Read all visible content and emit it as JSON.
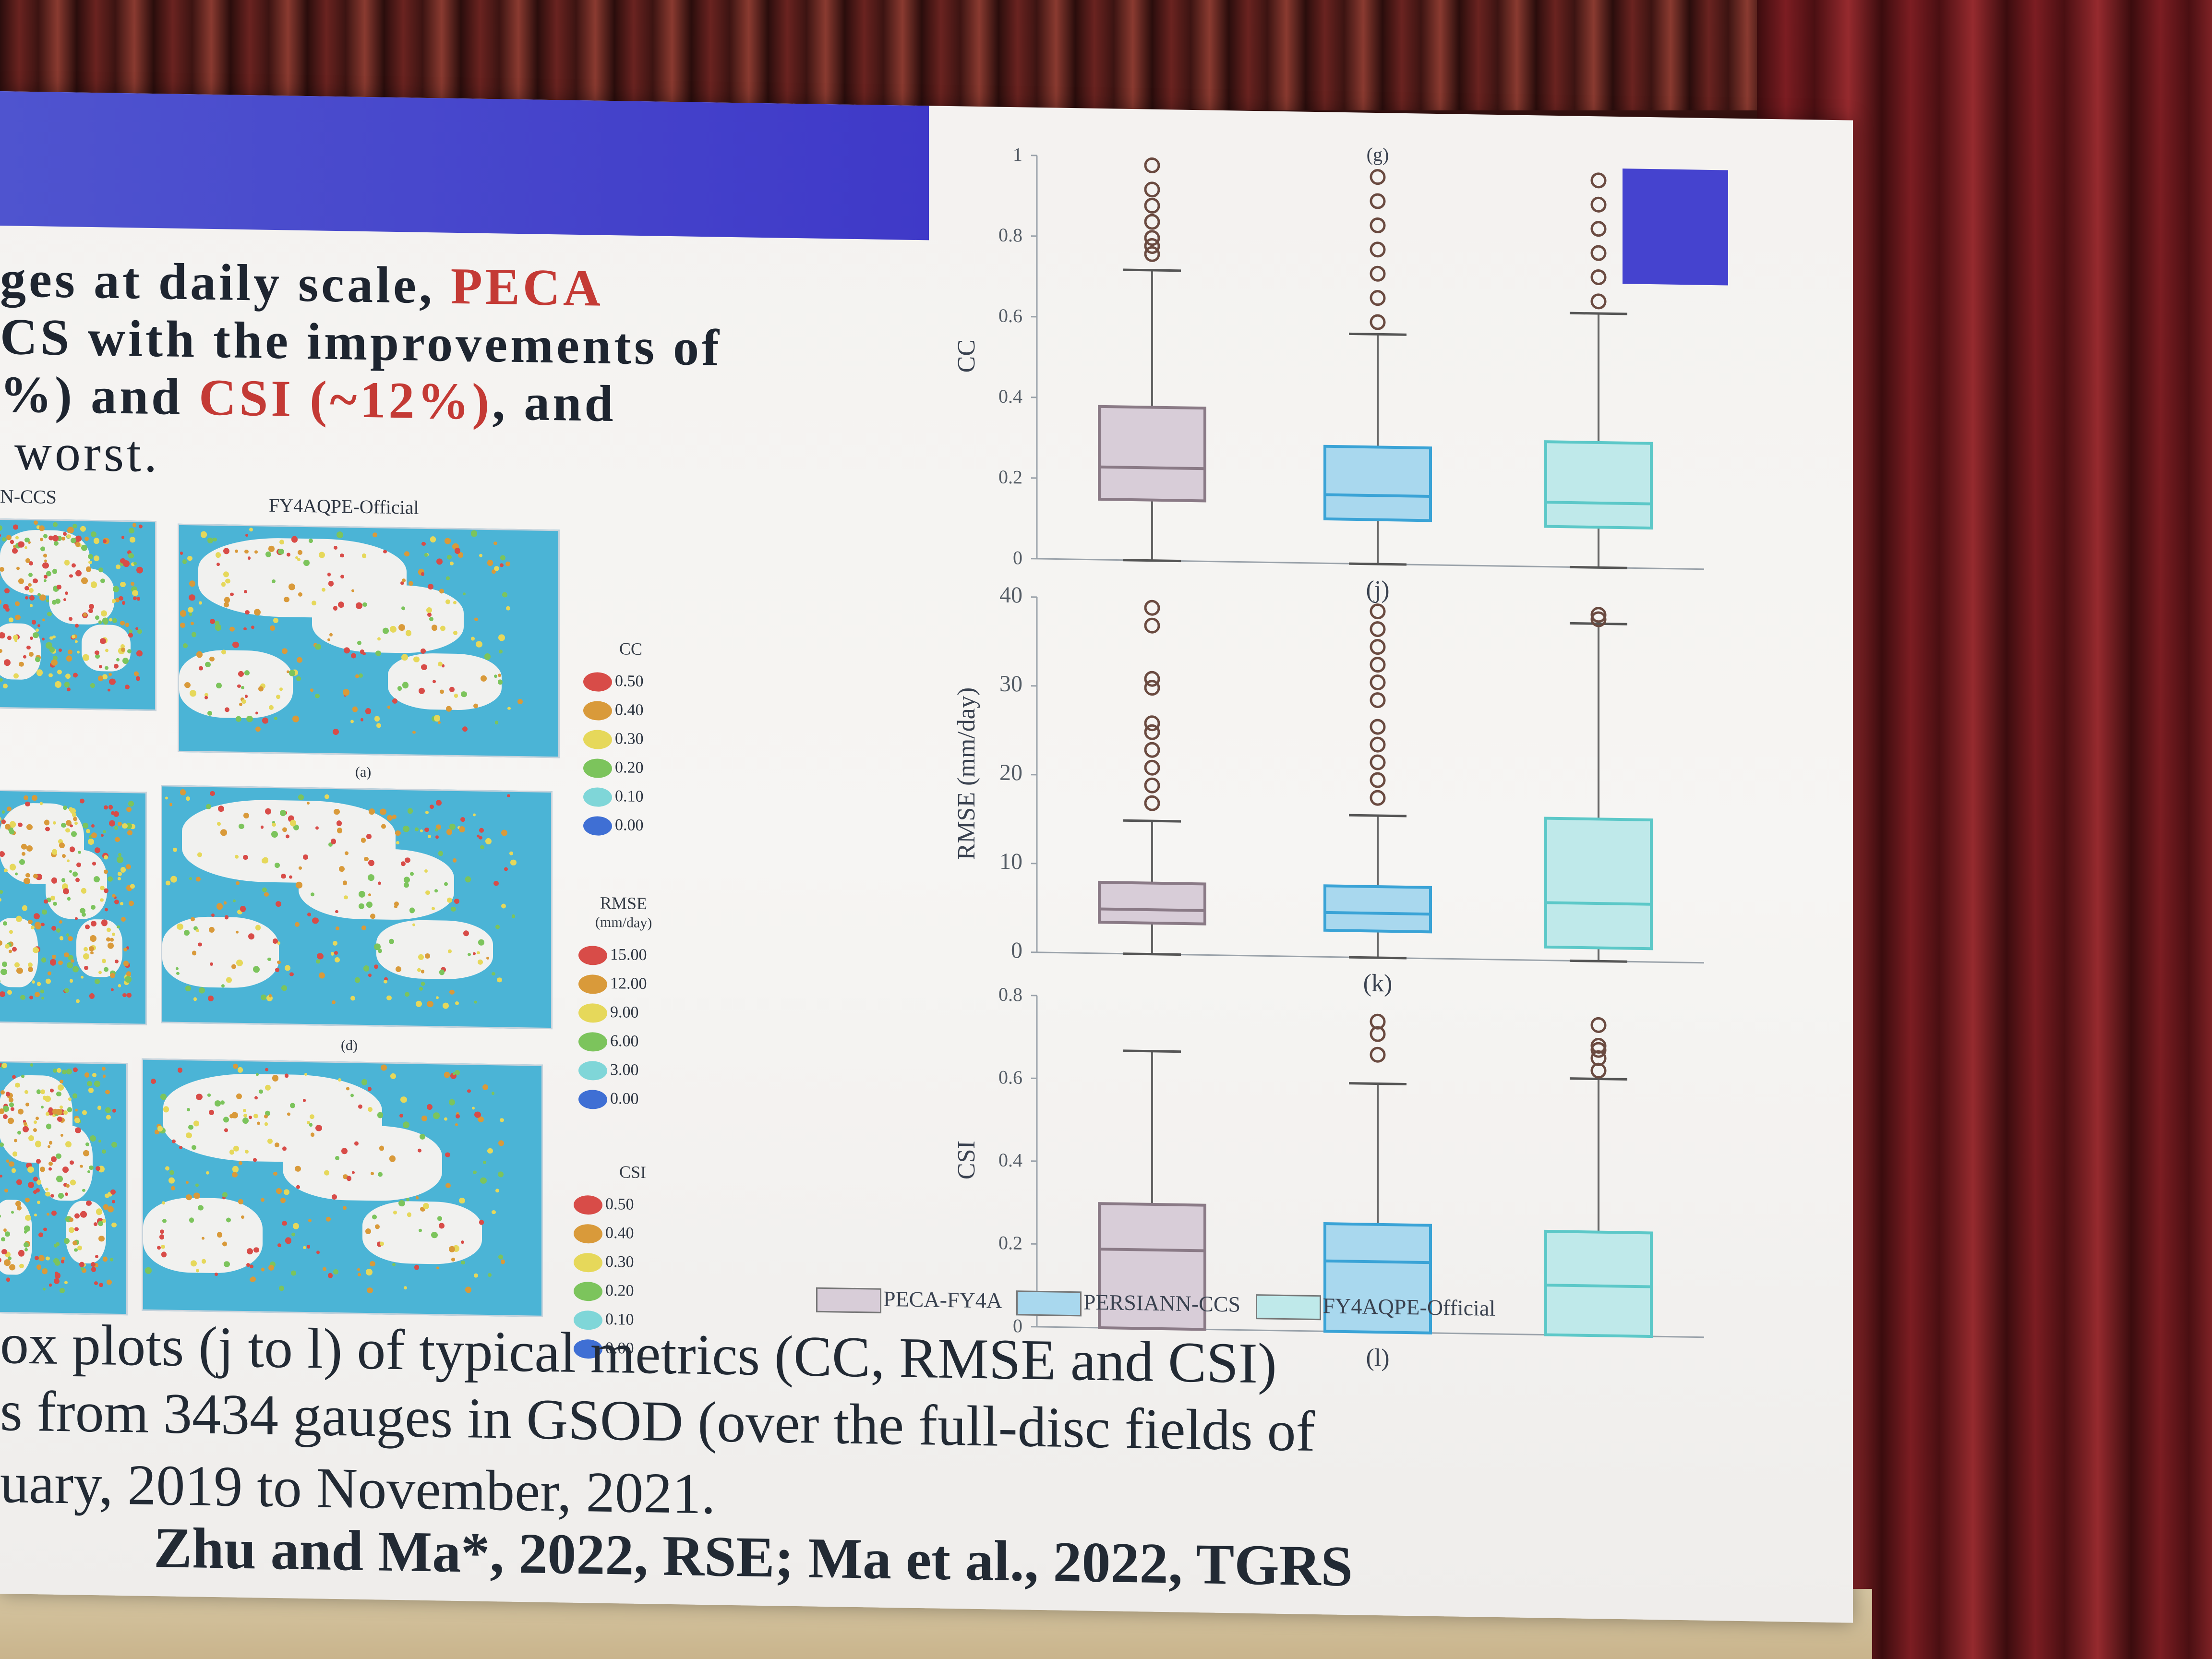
{
  "slide": {
    "bullet_lines": [
      {
        "text_before": "ges at daily scale, ",
        "highlight": "PECA",
        "text_after": ""
      },
      {
        "text_before": "CS with the improvements of",
        "highlight": "",
        "text_after": ""
      },
      {
        "text_before": "%) and ",
        "highlight": "CSI (~12%)",
        "text_after": ", and"
      },
      {
        "text_before": "worst.",
        "highlight": "",
        "text_after": ""
      }
    ],
    "map_labels": [
      "N-CCS",
      "FY4AQPE-Official"
    ],
    "map_panel_letters": [
      "(a)",
      "(d)"
    ],
    "legends": [
      {
        "title": "CC",
        "unit": "",
        "items": [
          "0.50",
          "0.40",
          "0.30",
          "0.20",
          "0.10",
          "0.00"
        ]
      },
      {
        "title": "RMSE",
        "unit": "(mm/day)",
        "items": [
          "15.00",
          "12.00",
          "9.00",
          "6.00",
          "3.00",
          "0.00"
        ]
      },
      {
        "title": "CSI",
        "unit": "",
        "items": [
          "0.50",
          "0.40",
          "0.30",
          "0.20",
          "0.10",
          "0.00"
        ]
      }
    ],
    "legend_colors": [
      "#d84c48",
      "#d99a3a",
      "#e6d85a",
      "#7cc45c",
      "#7fd6d8",
      "#3f6fd4"
    ],
    "caption_lines": [
      "ox plots (j to l) of typical metrics (CC, RMSE and CSI)",
      "s from 3434 gauges in GSOD (over the full-disc fields of",
      "uary, 2019 to November, 2021."
    ],
    "citation": "Zhu and Ma*, 2022, RSE; Ma et al., 2022, TGRS",
    "bottom_legend": [
      "PECA-FY4A",
      "PERSIANN-CCS",
      "FY4AQPE-Official"
    ]
  },
  "colors": {
    "peca": "#d8cdd8",
    "persiann": "#a9d8ee",
    "fy4a": "#bfe9ea",
    "peca_stroke": "#8a7a86",
    "persiann_stroke": "#3aa3d6",
    "fy4a_stroke": "#5cc8c8",
    "outlier": "#6a4a40"
  },
  "chart_data": [
    {
      "type": "box",
      "panel": "(g)",
      "ylabel": "CC",
      "ylim": [
        0,
        1
      ],
      "yticks": [
        "0",
        "0.2",
        "0.4",
        "0.6",
        "0.8",
        "1"
      ],
      "series": [
        {
          "name": "PECA-FY4A",
          "min": 0.0,
          "q1": 0.15,
          "median": 0.23,
          "q3": 0.38,
          "max": 0.72,
          "outliers": [
            0.76,
            0.78,
            0.8,
            0.84,
            0.88,
            0.92,
            0.98
          ]
        },
        {
          "name": "PERSIANN-CCS",
          "min": 0.0,
          "q1": 0.11,
          "median": 0.17,
          "q3": 0.29,
          "max": 0.57,
          "outliers": [
            0.6,
            0.66,
            0.72,
            0.78,
            0.84,
            0.9,
            0.96
          ]
        },
        {
          "name": "FY4AQPE-Official",
          "min": 0.0,
          "q1": 0.1,
          "median": 0.16,
          "q3": 0.31,
          "max": 0.63,
          "outliers": [
            0.66,
            0.72,
            0.78,
            0.84,
            0.9,
            0.96
          ]
        }
      ]
    },
    {
      "type": "box",
      "panel": "(j)",
      "ylabel": "RMSE (mm/day)",
      "ylim": [
        0,
        40
      ],
      "yticks": [
        "0",
        "10",
        "20",
        "30",
        "40"
      ],
      "series": [
        {
          "name": "PECA-FY4A",
          "min": 0.0,
          "q1": 3.5,
          "median": 5.0,
          "q3": 8.0,
          "max": 15.0,
          "outliers": [
            17,
            19,
            21,
            23,
            25,
            26,
            30,
            31,
            37,
            39
          ]
        },
        {
          "name": "PERSIANN-CCS",
          "min": 0.0,
          "q1": 3.0,
          "median": 5.0,
          "q3": 8.0,
          "max": 16.0,
          "outliers": [
            18,
            20,
            22,
            24,
            26,
            29,
            31,
            33,
            35,
            37,
            39
          ]
        },
        {
          "name": "FY4AQPE-Official",
          "min": 0.0,
          "q1": 1.5,
          "median": 6.5,
          "q3": 16.0,
          "max": 38.0,
          "outliers": [
            38.5,
            39
          ]
        }
      ]
    },
    {
      "type": "box",
      "panel": "(k)",
      "ylabel": "CSI",
      "ylim": [
        0,
        0.8
      ],
      "yticks": [
        "0",
        "0.2",
        "0.4",
        "0.6",
        "0.8"
      ],
      "series": [
        {
          "name": "PECA-FY4A",
          "min": 0.0,
          "q1": 0.0,
          "median": 0.19,
          "q3": 0.3,
          "max": 0.67,
          "outliers": []
        },
        {
          "name": "PERSIANN-CCS",
          "min": 0.0,
          "q1": 0.0,
          "median": 0.17,
          "q3": 0.26,
          "max": 0.6,
          "outliers": [
            0.67,
            0.72,
            0.75
          ]
        },
        {
          "name": "FY4AQPE-Official",
          "min": 0.0,
          "q1": 0.0,
          "median": 0.12,
          "q3": 0.25,
          "max": 0.62,
          "outliers": [
            0.64,
            0.67,
            0.69,
            0.7,
            0.75
          ]
        }
      ],
      "xlabel": "(l)"
    }
  ]
}
